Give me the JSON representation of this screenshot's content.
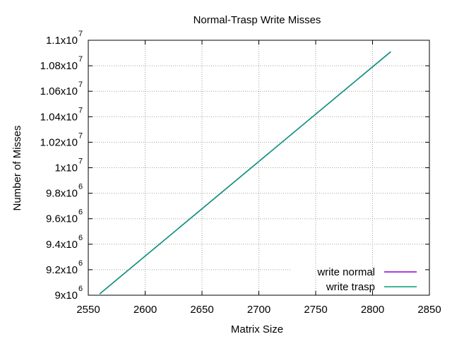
{
  "chart_data": {
    "type": "line",
    "title": "Normal-Trasp Write Misses",
    "xlabel": "Matrix Size",
    "ylabel": "Number of Misses",
    "xlim": [
      2550,
      2850
    ],
    "ylim": [
      9000000,
      11000000
    ],
    "x_ticks": [
      "2550",
      "2600",
      "2650",
      "2700",
      "2750",
      "2800",
      "2850"
    ],
    "y_ticks": [
      {
        "mantissa": "9x10",
        "exp": "6"
      },
      {
        "mantissa": "9.2x10",
        "exp": "6"
      },
      {
        "mantissa": "9.4x10",
        "exp": "6"
      },
      {
        "mantissa": "9.6x10",
        "exp": "6"
      },
      {
        "mantissa": "9.8x10",
        "exp": "6"
      },
      {
        "mantissa": "1x10",
        "exp": "7"
      },
      {
        "mantissa": "1.02x10",
        "exp": "7"
      },
      {
        "mantissa": "1.04x10",
        "exp": "7"
      },
      {
        "mantissa": "1.06x10",
        "exp": "7"
      },
      {
        "mantissa": "1.08x10",
        "exp": "7"
      },
      {
        "mantissa": "1.1x10",
        "exp": "7"
      }
    ],
    "grid": true,
    "legend_position": "bottom-right",
    "series": [
      {
        "name": "write normal",
        "color": "#9400d3",
        "x": [
          2560,
          2816
        ],
        "y": [
          9010000,
          10910000
        ]
      },
      {
        "name": "write trasp",
        "color": "#009e73",
        "x": [
          2560,
          2816
        ],
        "y": [
          9010000,
          10910000
        ]
      }
    ]
  }
}
